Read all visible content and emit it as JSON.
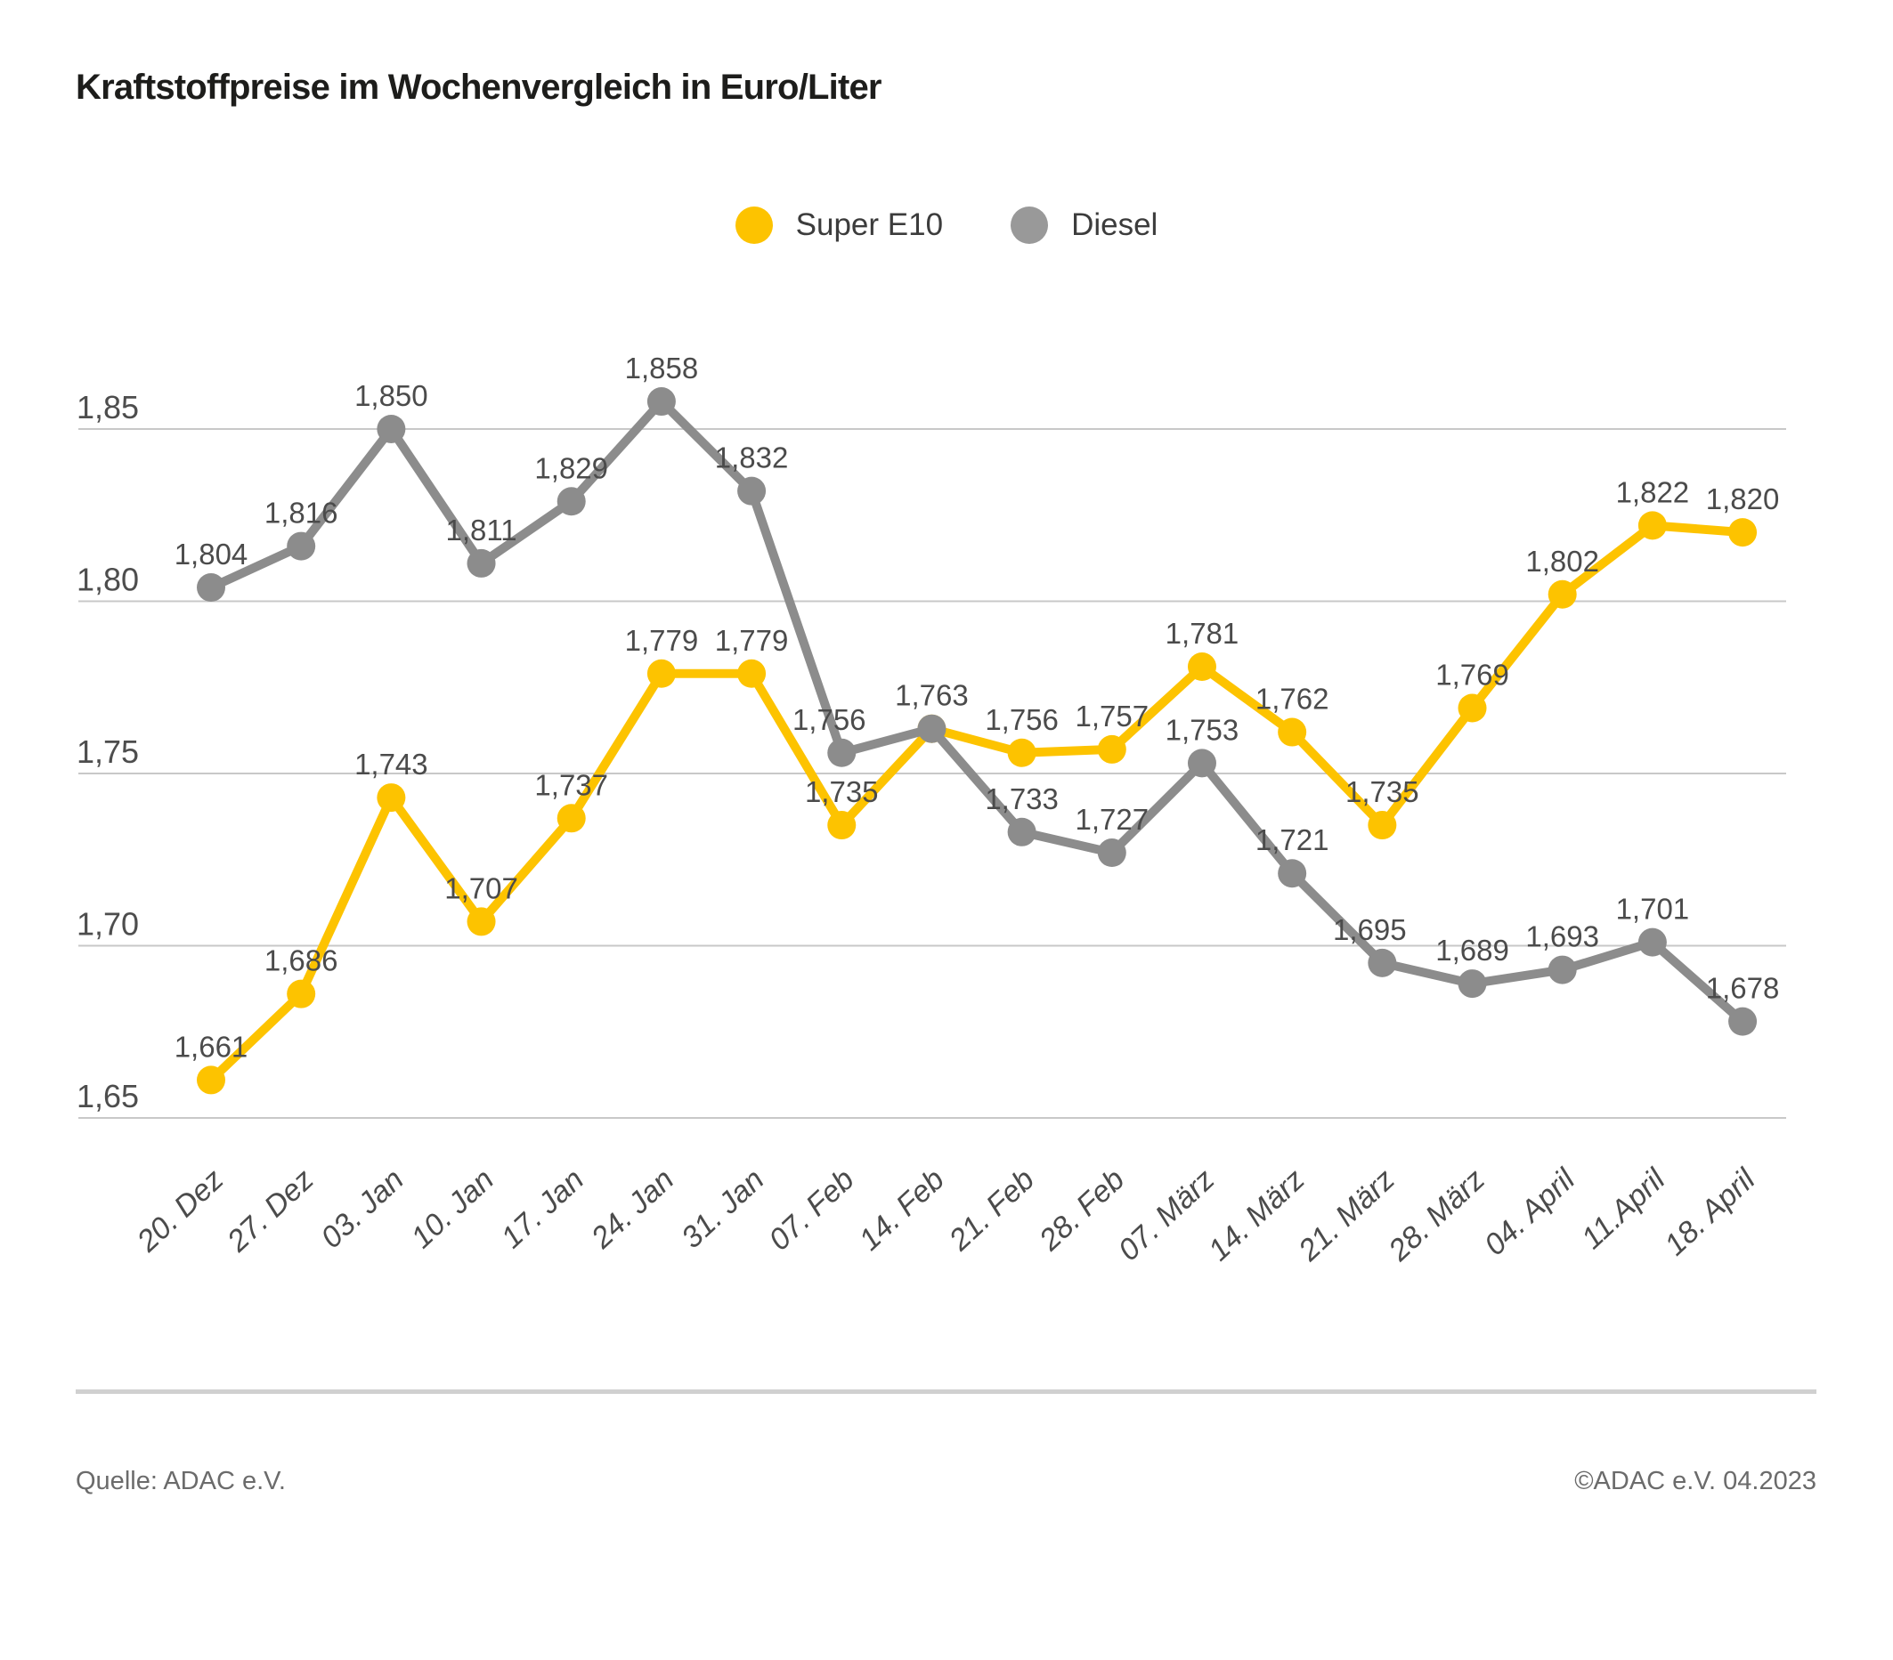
{
  "title": "Kraftstoffpreise im Wochenvergleich in Euro/Liter",
  "legend": {
    "items": [
      {
        "label": "Super E10",
        "color": "#FDC300"
      },
      {
        "label": "Diesel",
        "color": "#999999"
      }
    ]
  },
  "footer": {
    "source": "Quelle: ADAC e.V.",
    "copyright": "©ADAC e.V. 04.2023"
  },
  "chart_data": {
    "type": "line",
    "title": "Kraftstoffpreise im Wochenvergleich in Euro/Liter",
    "unit": "Euro/Liter",
    "categories": [
      "20. Dez",
      "27. Dez",
      "03. Jan",
      "10. Jan",
      "17. Jan",
      "24. Jan",
      "31. Jan",
      "07. Feb",
      "14. Feb",
      "21. Feb",
      "28. Feb",
      "07. März",
      "14. März",
      "21. März",
      "28. März",
      "04. April",
      "11.April",
      "18. April"
    ],
    "series": [
      {
        "name": "Super E10",
        "color": "#FDC300",
        "values": [
          1.661,
          1.686,
          1.743,
          1.707,
          1.737,
          1.779,
          1.779,
          1.735,
          1.763,
          1.756,
          1.757,
          1.781,
          1.762,
          1.735,
          1.769,
          1.802,
          1.822,
          1.82
        ],
        "label_skip_indices": [
          8
        ]
      },
      {
        "name": "Diesel",
        "color": "#8C8C8C",
        "values": [
          1.804,
          1.816,
          1.85,
          1.811,
          1.829,
          1.858,
          1.832,
          1.756,
          1.763,
          1.733,
          1.727,
          1.753,
          1.721,
          1.695,
          1.689,
          1.693,
          1.701,
          1.678
        ],
        "label_skip_indices": []
      }
    ],
    "ylim": [
      1.65,
      1.85
    ],
    "ytick_values": [
      1.85,
      1.8,
      1.75,
      1.7,
      1.65
    ],
    "ytick_labels": [
      "1,85",
      "1,80",
      "1,75",
      "1,70",
      "1,65"
    ],
    "grid": true,
    "legend_position": "top",
    "value_label_format": "german-comma-3-decimals"
  }
}
